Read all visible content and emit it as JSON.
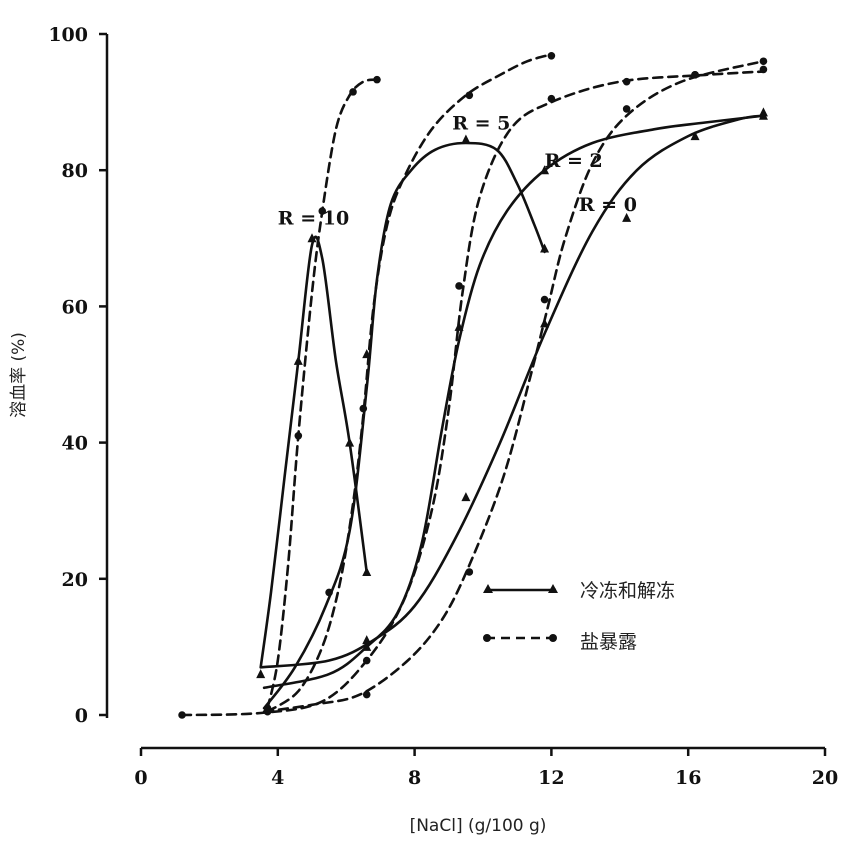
{
  "chart_data": {
    "type": "line",
    "title": "",
    "xlabel": "[NaCl] (g/100 g)",
    "ylabel": "溶血率 (%)",
    "xlim": [
      0,
      20
    ],
    "ylim": [
      0,
      100
    ],
    "x_ticks": [
      "0",
      "4",
      "8",
      "12",
      "16",
      "20"
    ],
    "y_ticks": [
      "0",
      "20",
      "40",
      "60",
      "80",
      "100"
    ],
    "grid": false,
    "legend": {
      "placement": "bottom-right",
      "entries": [
        {
          "label": "冷冻和解冻",
          "style": "solid",
          "marker": "triangle"
        },
        {
          "label": "盐暴露",
          "style": "dashed",
          "marker": "circle"
        }
      ]
    },
    "series": [
      {
        "name": "R = 10",
        "group": "冷冻和解冻",
        "style": "solid",
        "marker": "triangle",
        "points": [
          [
            3.5,
            7
          ],
          [
            3.8,
            18
          ],
          [
            4.2,
            35
          ],
          [
            4.6,
            52
          ],
          [
            5.0,
            69
          ],
          [
            5.3,
            67
          ],
          [
            5.7,
            52
          ],
          [
            6.1,
            40
          ],
          [
            6.6,
            21
          ]
        ],
        "markers": [
          [
            3.5,
            6
          ],
          [
            4.6,
            52
          ],
          [
            5.0,
            70
          ],
          [
            6.1,
            40
          ],
          [
            6.6,
            21
          ]
        ]
      },
      {
        "name": "",
        "group": "盐暴露",
        "style": "dashed",
        "marker": "circle",
        "points": [
          [
            3.7,
            1
          ],
          [
            4.0,
            8
          ],
          [
            4.3,
            22
          ],
          [
            4.6,
            41
          ],
          [
            5.0,
            62
          ],
          [
            5.3,
            74
          ],
          [
            5.7,
            86
          ],
          [
            6.1,
            91
          ],
          [
            6.5,
            93
          ],
          [
            6.9,
            93.3
          ]
        ],
        "markers": [
          [
            3.7,
            1
          ],
          [
            4.6,
            41
          ],
          [
            5.3,
            74
          ],
          [
            6.2,
            91.5
          ],
          [
            6.9,
            93.3
          ]
        ]
      },
      {
        "name": "R = 5",
        "group": "冷冻和解冻",
        "style": "solid",
        "marker": "triangle",
        "points": [
          [
            3.6,
            1
          ],
          [
            4.5,
            7
          ],
          [
            5.4,
            16
          ],
          [
            6.1,
            27
          ],
          [
            6.6,
            48
          ],
          [
            6.9,
            64
          ],
          [
            7.3,
            75
          ],
          [
            7.9,
            80
          ],
          [
            8.6,
            83
          ],
          [
            9.5,
            84
          ],
          [
            10.4,
            83
          ],
          [
            11.0,
            78
          ],
          [
            11.5,
            72
          ],
          [
            11.8,
            68
          ]
        ],
        "markers": [
          [
            6.6,
            53
          ],
          [
            9.5,
            84.5
          ],
          [
            11.8,
            68.5
          ]
        ]
      },
      {
        "name": "",
        "group": "盐暴露",
        "style": "dashed",
        "marker": "circle",
        "points": [
          [
            3.7,
            0.5
          ],
          [
            4.6,
            3.5
          ],
          [
            5.3,
            10
          ],
          [
            5.8,
            19
          ],
          [
            6.2,
            31
          ],
          [
            6.5,
            44
          ],
          [
            6.8,
            60
          ],
          [
            7.2,
            72
          ],
          [
            7.7,
            79
          ],
          [
            8.5,
            86
          ],
          [
            9.5,
            91
          ],
          [
            10.5,
            94
          ],
          [
            11.3,
            96
          ],
          [
            12,
            97
          ]
        ],
        "markers": [
          [
            3.7,
            0.5
          ],
          [
            5.5,
            18
          ],
          [
            6.5,
            45
          ],
          [
            9.6,
            91
          ],
          [
            12,
            96.8
          ]
        ]
      },
      {
        "name": "R = 2",
        "group": "冷冻和解冻",
        "style": "solid",
        "marker": "triangle",
        "points": [
          [
            3.6,
            4
          ],
          [
            5.5,
            6
          ],
          [
            6.6,
            10
          ],
          [
            7.5,
            15
          ],
          [
            8.2,
            25
          ],
          [
            8.8,
            42
          ],
          [
            9.3,
            55
          ],
          [
            9.9,
            66
          ],
          [
            10.7,
            74
          ],
          [
            11.8,
            80
          ],
          [
            13.2,
            84
          ],
          [
            15.0,
            86
          ],
          [
            16.5,
            87
          ],
          [
            18.2,
            88
          ]
        ],
        "markers": [
          [
            6.6,
            10
          ],
          [
            9.3,
            57
          ],
          [
            11.8,
            80
          ],
          [
            18.2,
            88.5
          ]
        ]
      },
      {
        "name": "",
        "group": "盐暴露",
        "style": "dashed",
        "marker": "circle",
        "points": [
          [
            1.2,
            0
          ],
          [
            3.5,
            0.3
          ],
          [
            5.3,
            2
          ],
          [
            6.6,
            8
          ],
          [
            7.7,
            17
          ],
          [
            8.5,
            30
          ],
          [
            9.0,
            45
          ],
          [
            9.4,
            62
          ],
          [
            9.9,
            76
          ],
          [
            10.8,
            86
          ],
          [
            12,
            90
          ],
          [
            14,
            93
          ],
          [
            16.5,
            94
          ],
          [
            18.2,
            94.5
          ]
        ],
        "markers": [
          [
            1.2,
            0
          ],
          [
            3.7,
            0.5
          ],
          [
            6.6,
            8
          ],
          [
            9.3,
            63
          ],
          [
            12,
            90.5
          ],
          [
            14.2,
            93
          ],
          [
            16.2,
            94
          ],
          [
            18.2,
            94.8
          ]
        ]
      },
      {
        "name": "R = 0",
        "group": "冷冻和解冻",
        "style": "solid",
        "marker": "triangle",
        "points": [
          [
            3.5,
            7
          ],
          [
            5.5,
            8
          ],
          [
            6.8,
            11
          ],
          [
            8.0,
            16
          ],
          [
            9.2,
            26
          ],
          [
            10.5,
            40
          ],
          [
            11.8,
            56
          ],
          [
            13.2,
            71
          ],
          [
            14.5,
            80
          ],
          [
            16.0,
            85
          ],
          [
            17.5,
            87.5
          ],
          [
            18.2,
            88
          ]
        ],
        "markers": [
          [
            6.6,
            11
          ],
          [
            9.5,
            32
          ],
          [
            11.8,
            57.5
          ],
          [
            14.2,
            73
          ],
          [
            16.2,
            85
          ],
          [
            18.2,
            88
          ]
        ]
      },
      {
        "name": "",
        "group": "盐暴露",
        "style": "dashed",
        "marker": "circle",
        "points": [
          [
            3.6,
            0.5
          ],
          [
            5.0,
            1.5
          ],
          [
            6.4,
            3
          ],
          [
            7.8,
            8
          ],
          [
            8.8,
            14
          ],
          [
            9.6,
            22
          ],
          [
            10.6,
            35
          ],
          [
            11.4,
            50
          ],
          [
            11.9,
            60
          ],
          [
            12.4,
            70
          ],
          [
            13.2,
            81
          ],
          [
            14.2,
            88
          ],
          [
            15.8,
            93
          ],
          [
            18.2,
            96
          ]
        ],
        "markers": [
          [
            6.6,
            3
          ],
          [
            9.6,
            21
          ],
          [
            11.8,
            61
          ],
          [
            14.2,
            89
          ],
          [
            16.2,
            94
          ],
          [
            18.2,
            96
          ]
        ]
      }
    ],
    "annotations": [
      {
        "text": "R = 10",
        "x": 4.0,
        "y": 72
      },
      {
        "text": "R = 5",
        "x": 9.1,
        "y": 86
      },
      {
        "text": "R = 2",
        "x": 11.8,
        "y": 80.5
      },
      {
        "text": "R = 0",
        "x": 12.8,
        "y": 74
      }
    ]
  }
}
